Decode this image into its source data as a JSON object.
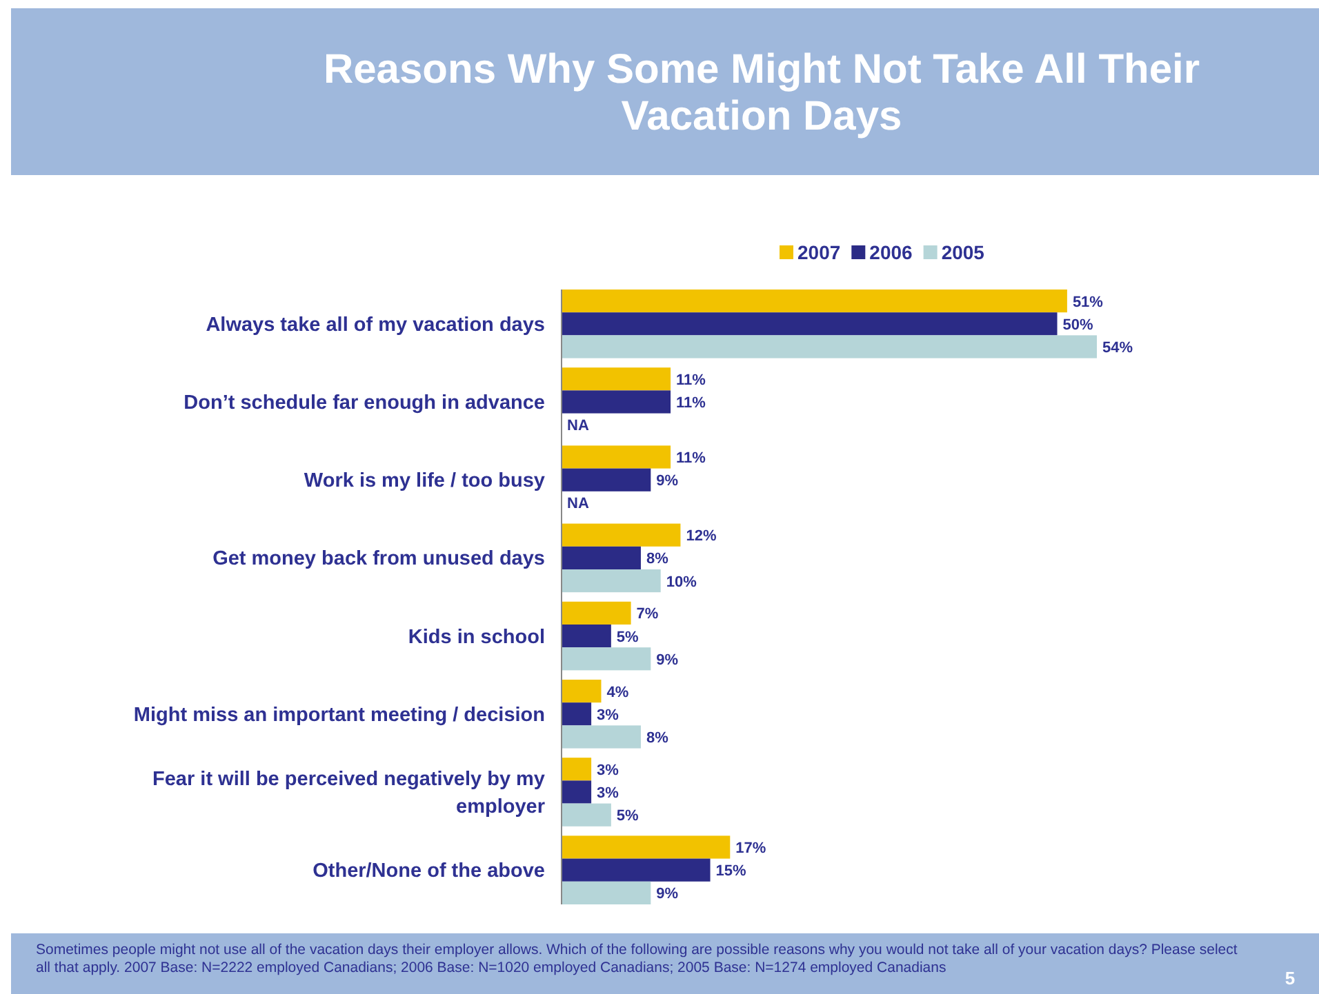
{
  "chart_data": {
    "type": "bar",
    "orientation": "horizontal",
    "title": "Reasons Why Some Might Not Take All Their Vacation Days",
    "categories": [
      "Always take all of my vacation days",
      "Don’t schedule far enough in advance",
      "Work is my life / too busy",
      "Get money back from unused days",
      "Kids in school",
      "Might miss an important meeting / decision",
      "Fear it will be perceived negatively by my employer",
      "Other/None of the above"
    ],
    "series": [
      {
        "name": "2007",
        "color": "#f2c200",
        "values": [
          51,
          11,
          11,
          12,
          7,
          4,
          3,
          17
        ],
        "value_labels": [
          "51%",
          "11%",
          "11%",
          "12%",
          "7%",
          "4%",
          "3%",
          "17%"
        ]
      },
      {
        "name": "2006",
        "color": "#2b2b86",
        "values": [
          50,
          11,
          9,
          8,
          5,
          3,
          3,
          15
        ],
        "value_labels": [
          "50%",
          "11%",
          "9%",
          "8%",
          "5%",
          "3%",
          "3%",
          "15%"
        ]
      },
      {
        "name": "2005",
        "color": "#b5d5d8",
        "values": [
          54,
          null,
          null,
          10,
          9,
          8,
          5,
          9
        ],
        "value_labels": [
          "54%",
          "NA",
          "NA",
          "10%",
          "9%",
          "8%",
          "5%",
          "9%"
        ]
      }
    ],
    "legend": "top",
    "annotations": [
      "Sometimes people might not use all of the vacation days their employer allows.  Which of the following are possible reasons why you would not take all of your vacation days?  Please select all that apply. 2007 Base: N=2222 employed Canadians; 2006 Base: N=1020 employed Canadians; 2005 Base: N=1274 employed Canadians",
      "5"
    ]
  }
}
